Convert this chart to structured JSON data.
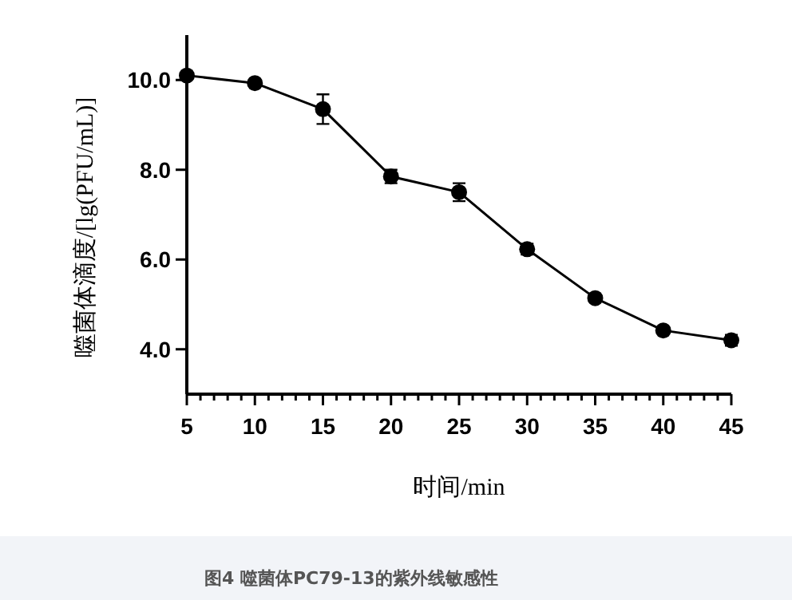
{
  "chart_data": {
    "type": "line",
    "xlabel": "时间/min",
    "ylabel": "噬菌体滴度/[lg(PFU/mL)]",
    "annotations": [
      "图4 噬菌体PC79-13的紫外线敏感性"
    ],
    "x": [
      5,
      10,
      15,
      20,
      25,
      30,
      35,
      40,
      45
    ],
    "series": [
      {
        "color": "#000000",
        "values": [
          10.1,
          9.93,
          9.35,
          7.85,
          7.5,
          6.23,
          5.14,
          4.42,
          4.2
        ],
        "errors": [
          0.05,
          0.05,
          0.33,
          0.15,
          0.2,
          0.12,
          0.07,
          0.07,
          0.12
        ]
      }
    ],
    "xlim": [
      5,
      45
    ],
    "xticks": [
      5,
      {
        "value": 6,
        "label": null
      },
      {
        "value": 7,
        "label": null
      },
      {
        "value": 8,
        "label": null
      },
      {
        "value": 9,
        "label": null
      },
      10,
      {
        "value": 11,
        "label": null
      },
      {
        "value": 12,
        "label": null
      },
      {
        "value": 13,
        "label": null
      },
      {
        "value": 14,
        "label": null
      },
      15,
      {
        "value": 16,
        "label": null
      },
      {
        "value": 17,
        "label": null
      },
      {
        "value": 18,
        "label": null
      },
      {
        "value": 19,
        "label": null
      },
      20,
      {
        "value": 21,
        "label": null
      },
      {
        "value": 22,
        "label": null
      },
      {
        "value": 23,
        "label": null
      },
      {
        "value": 24,
        "label": null
      },
      25,
      {
        "value": 26,
        "label": null
      },
      {
        "value": 27,
        "label": null
      },
      {
        "value": 28,
        "label": null
      },
      {
        "value": 29,
        "label": null
      },
      30,
      {
        "value": 31,
        "label": null
      },
      {
        "value": 32,
        "label": null
      },
      {
        "value": 33,
        "label": null
      },
      {
        "value": 34,
        "label": null
      },
      35,
      {
        "value": 36,
        "label": null
      },
      {
        "value": 37,
        "label": null
      },
      {
        "value": 38,
        "label": null
      },
      {
        "value": 39,
        "label": null
      },
      40,
      {
        "value": 41,
        "label": null
      },
      {
        "value": 42,
        "label": null
      },
      {
        "value": 43,
        "label": null
      },
      {
        "value": 44,
        "label": null
      },
      45
    ],
    "ylim": [
      3,
      11
    ],
    "yticks": [
      {
        "value": 4,
        "label": "4.0"
      },
      {
        "value": 6,
        "label": "6.0"
      },
      {
        "value": 8,
        "label": "8.0"
      },
      {
        "value": 10,
        "label": "10.0"
      }
    ],
    "grid": false,
    "marker": "circle",
    "line_style": "solid"
  }
}
